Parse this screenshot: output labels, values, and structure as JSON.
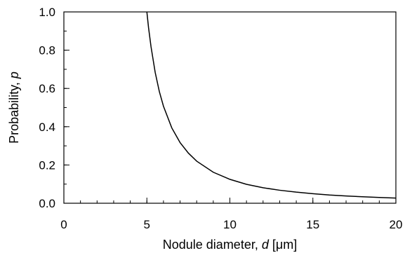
{
  "chart_data": {
    "type": "line",
    "title": "",
    "xlabel": {
      "text": "Nodule diameter, ",
      "var": "d",
      "unit": " [μm]"
    },
    "ylabel": {
      "text": "Probability, ",
      "var": "p"
    },
    "xlim": [
      0,
      20
    ],
    "ylim": [
      0,
      1
    ],
    "xticks": [
      0,
      5,
      10,
      15,
      20
    ],
    "xtick_labels": [
      "0",
      "5",
      "10",
      "15",
      "20"
    ],
    "x_minor_step": 1,
    "yticks": [
      0,
      0.2,
      0.4,
      0.6,
      0.8,
      1.0
    ],
    "ytick_labels": [
      "0.0",
      "0.2",
      "0.4",
      "0.6",
      "0.8",
      "1.0"
    ],
    "y_minor_step": 0.1,
    "grid": false,
    "line_color": "#000000",
    "series": [
      {
        "x": [
          5.0,
          5.1,
          5.25,
          5.5,
          5.75,
          6.0,
          6.5,
          7.0,
          7.5,
          8.0,
          9.0,
          10.0,
          11.0,
          12.0,
          13.0,
          14.0,
          15.0,
          16.0,
          17.0,
          18.0,
          19.0,
          20.0
        ],
        "y": [
          1.0,
          0.918,
          0.818,
          0.684,
          0.584,
          0.507,
          0.394,
          0.317,
          0.262,
          0.22,
          0.162,
          0.125,
          0.099,
          0.081,
          0.068,
          0.058,
          0.05,
          0.043,
          0.038,
          0.034,
          0.03,
          0.027
        ]
      }
    ]
  }
}
